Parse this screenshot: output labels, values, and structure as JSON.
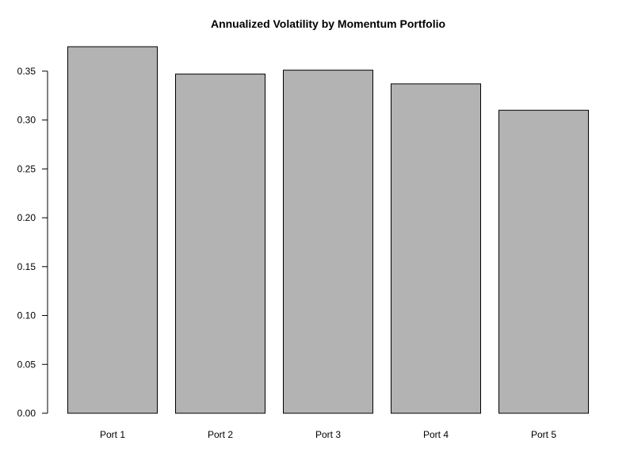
{
  "chart_data": {
    "type": "bar",
    "title": "Annualized Volatility by Momentum Portfolio",
    "xlabel": "",
    "ylabel": "",
    "categories": [
      "Port 1",
      "Port 2",
      "Port 3",
      "Port 4",
      "Port 5"
    ],
    "values": [
      0.375,
      0.347,
      0.351,
      0.337,
      0.31
    ],
    "ylim": [
      0,
      0.375
    ],
    "yticks": [
      0.0,
      0.05,
      0.1,
      0.15,
      0.2,
      0.25,
      0.3,
      0.35
    ],
    "ytick_labels": [
      "0.00",
      "0.05",
      "0.10",
      "0.15",
      "0.20",
      "0.25",
      "0.30",
      "0.35"
    ],
    "grid": false,
    "bar_color": "#b3b3b3",
    "bar_edge_color": "#000000"
  }
}
